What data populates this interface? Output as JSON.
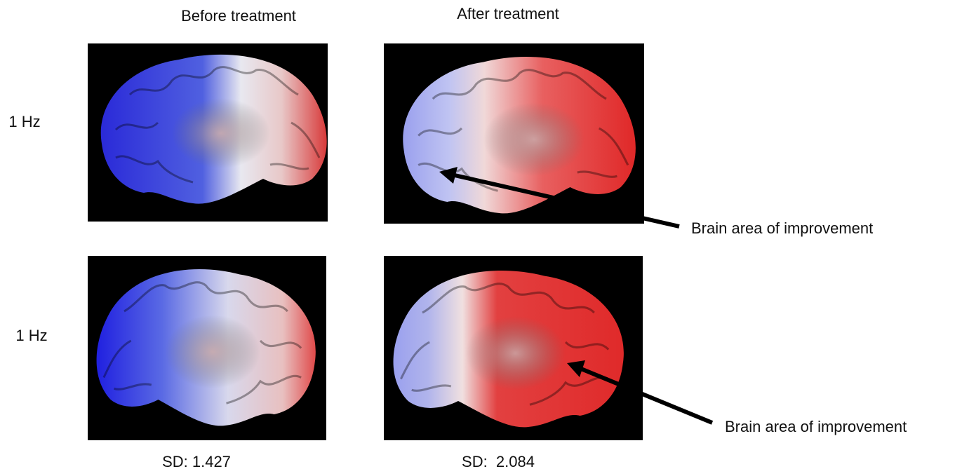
{
  "columns": [
    "Before treatment",
    "After treatment"
  ],
  "rows": [
    "1 Hz",
    "1 Hz"
  ],
  "annotations": [
    "Brain area of improvement",
    "Brain area of improvement"
  ],
  "sd_labels": [
    "SD: 1.427",
    "SD:  2.084"
  ]
}
